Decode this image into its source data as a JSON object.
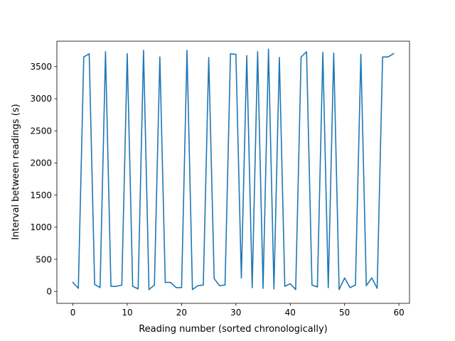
{
  "chart_data": {
    "type": "line",
    "title": "",
    "xlabel": "Reading number (sorted chronologically)",
    "ylabel": "Interval between readings (s)",
    "xlim": [
      -2.95,
      61.95
    ],
    "ylim": [
      -185,
      3895
    ],
    "xticks": [
      0,
      10,
      20,
      30,
      40,
      50,
      60
    ],
    "yticks": [
      0,
      500,
      1000,
      1500,
      2000,
      2500,
      3000,
      3500
    ],
    "grid": false,
    "series": [
      {
        "color": "#1f77b4",
        "x": [
          0,
          1,
          2,
          3,
          4,
          5,
          6,
          7,
          8,
          9,
          10,
          11,
          12,
          13,
          14,
          15,
          16,
          17,
          18,
          19,
          20,
          21,
          22,
          23,
          24,
          25,
          26,
          27,
          28,
          29,
          30,
          31,
          32,
          33,
          34,
          35,
          36,
          37,
          38,
          39,
          40,
          41,
          42,
          43,
          44,
          45,
          46,
          47,
          48,
          49,
          50,
          51,
          52,
          53,
          54,
          55,
          56,
          57,
          58,
          59
        ],
        "y": [
          140,
          50,
          3650,
          3700,
          110,
          60,
          3730,
          80,
          80,
          100,
          3700,
          80,
          40,
          3750,
          30,
          100,
          3650,
          140,
          140,
          60,
          60,
          3750,
          30,
          90,
          100,
          3640,
          200,
          90,
          100,
          3700,
          3690,
          210,
          3670,
          60,
          3730,
          50,
          3770,
          40,
          3640,
          80,
          120,
          30,
          3650,
          3730,
          100,
          70,
          3720,
          60,
          3710,
          30,
          210,
          60,
          100,
          3690,
          90,
          210,
          50,
          3650,
          3650,
          3700
        ]
      }
    ]
  }
}
